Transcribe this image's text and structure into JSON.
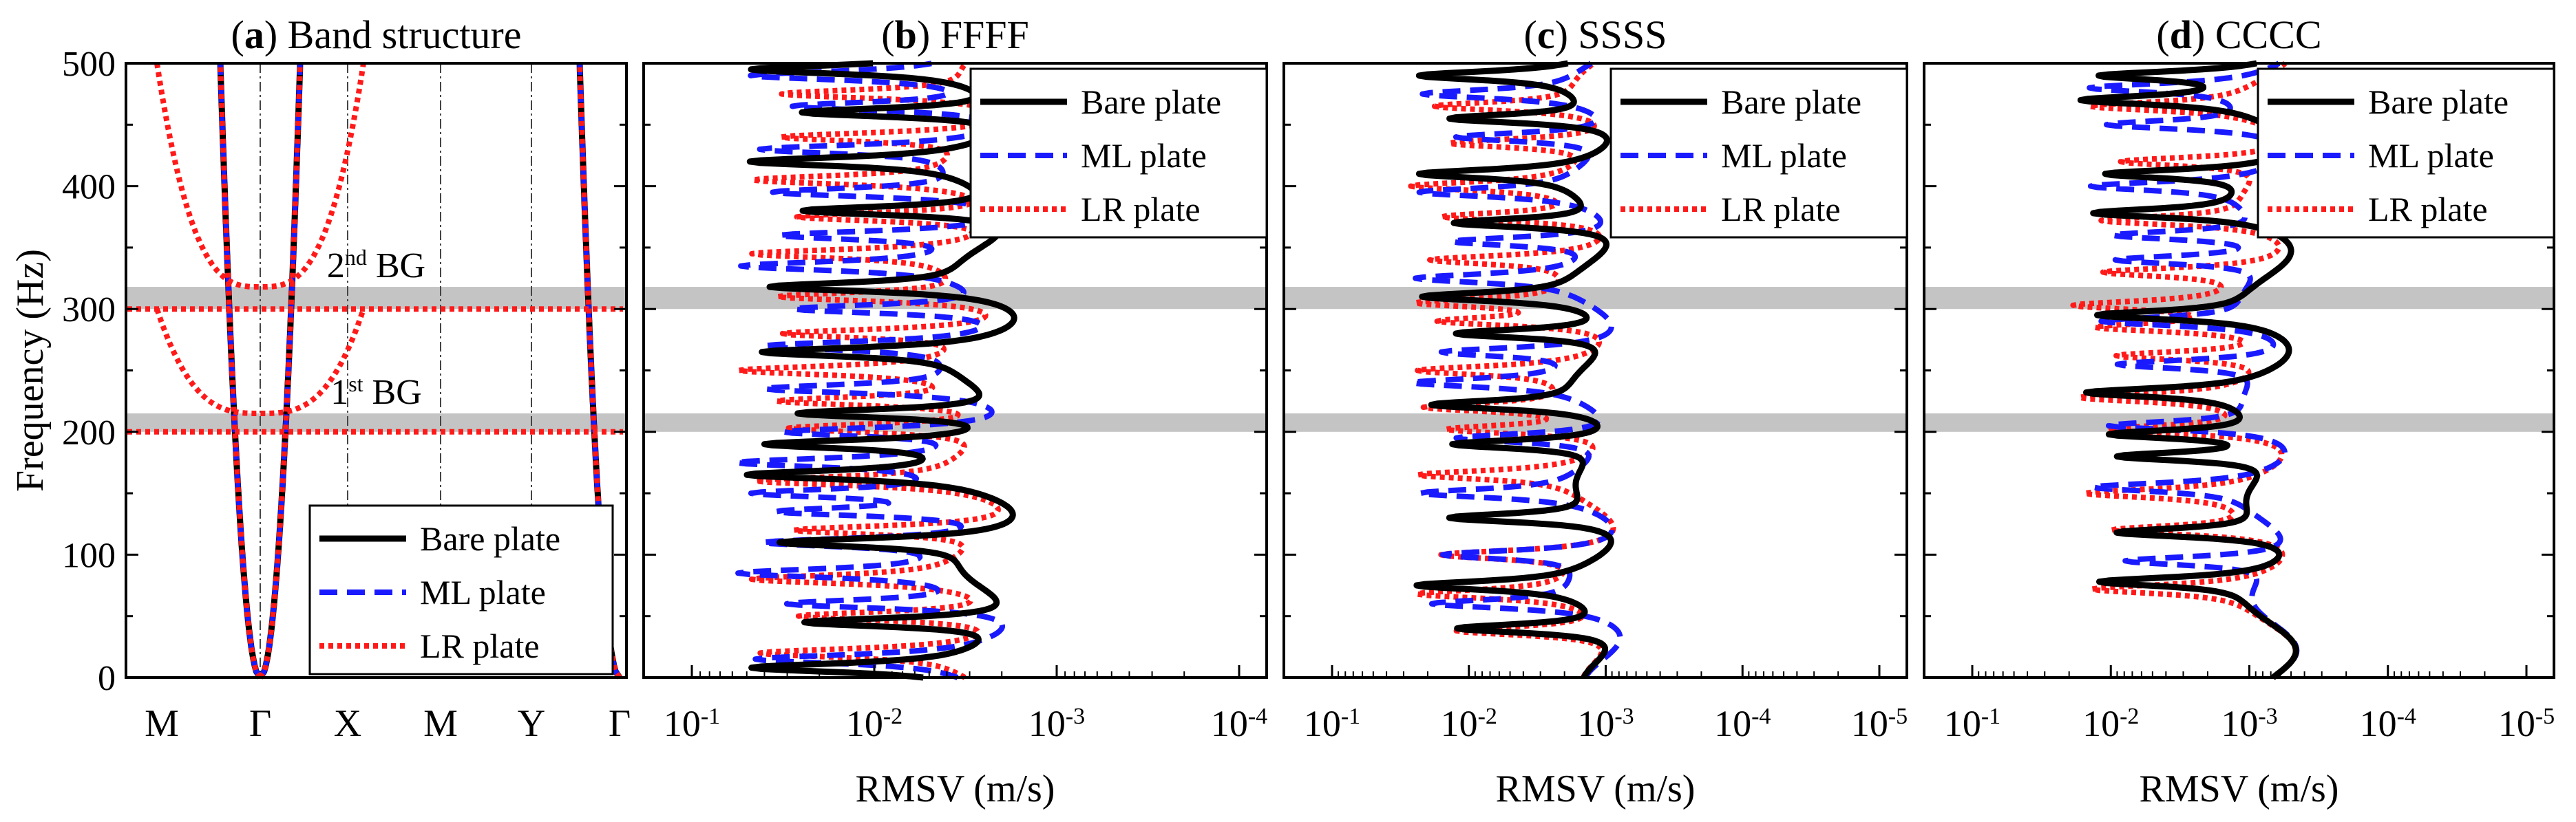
{
  "figure": {
    "y_axis_label": "Frequency (Hz)",
    "x_axis_label": "RMSV (m/s)"
  },
  "legend_entries": [
    {
      "name": "Bare plate",
      "color": "#000000",
      "style": "solid"
    },
    {
      "name": "ML plate",
      "color": "#1a1aff",
      "style": "dashed"
    },
    {
      "name": "LR plate",
      "color": "#ff1a1a",
      "style": "dotted"
    }
  ],
  "chart_data": [
    {
      "type": "line",
      "panel_id": "a",
      "title": "Band structure",
      "xlabel": "",
      "ylabel": "Frequency (Hz)",
      "ylim": [
        0,
        500
      ],
      "y_ticks": [
        "0",
        "100",
        "200",
        "300",
        "400",
        "500"
      ],
      "k_path": [
        "M",
        "Γ",
        "X",
        "M",
        "Y",
        "Γ"
      ],
      "band_gaps": [
        {
          "label": "1",
          "label_sup": "st",
          "label_suffix": " BG",
          "range": [
            200,
            215
          ]
        },
        {
          "label": "2",
          "label_sup": "nd",
          "label_suffix": " BG",
          "range": [
            300,
            318
          ]
        }
      ],
      "series": [
        {
          "name": "Bare plate",
          "curves": [
            {
              "kind": "branch",
              "max": 500
            }
          ]
        },
        {
          "name": "ML plate",
          "curves": [
            {
              "kind": "branch",
              "max": 500
            }
          ]
        },
        {
          "name": "LR plate",
          "curves": [
            {
              "kind": "flat",
              "level": 200
            },
            {
              "kind": "bowl",
              "bottom": 215
            },
            {
              "kind": "flat",
              "level": 300
            },
            {
              "kind": "bowl",
              "bottom": 318
            },
            {
              "kind": "branch",
              "max": 500
            }
          ]
        }
      ],
      "legend": [
        "Bare plate",
        "ML plate",
        "LR plate"
      ]
    },
    {
      "type": "line",
      "panel_id": "b",
      "title": "FFFF",
      "xlabel": "RMSV (m/s)",
      "ylabel": "Frequency (Hz)",
      "ylim": [
        0,
        500
      ],
      "xscale": "log",
      "x_reversed": true,
      "x_ticks": [
        {
          "base": "10",
          "exp": "-1"
        },
        {
          "base": "10",
          "exp": "-2"
        },
        {
          "base": "10",
          "exp": "-3"
        },
        {
          "base": "10",
          "exp": "-4"
        }
      ],
      "band_gaps": [
        [
          200,
          215
        ],
        [
          300,
          318
        ]
      ],
      "series": [
        {
          "name": "Bare plate",
          "resonances_hz": [
            8,
            45,
            110,
            165,
            190,
            215,
            265,
            318,
            380,
            420,
            460,
            495
          ]
        },
        {
          "name": "ML plate",
          "resonances_hz": [
            15,
            60,
            85,
            110,
            135,
            150,
            175,
            200,
            235,
            270,
            300,
            335,
            360,
            395,
            430,
            465,
            490
          ]
        },
        {
          "name": "LR plate",
          "resonances_hz": [
            20,
            50,
            80,
            120,
            160,
            203,
            225,
            250,
            280,
            310,
            345,
            375,
            405,
            440,
            475
          ]
        }
      ],
      "legend": [
        "Bare plate",
        "ML plate",
        "LR plate"
      ]
    },
    {
      "type": "line",
      "panel_id": "c",
      "title": "SSSS",
      "xlabel": "RMSV (m/s)",
      "ylabel": "Frequency (Hz)",
      "ylim": [
        0,
        500
      ],
      "xscale": "log",
      "x_reversed": true,
      "x_ticks": [
        {
          "base": "10",
          "exp": "-1"
        },
        {
          "base": "10",
          "exp": "-2"
        },
        {
          "base": "10",
          "exp": "-3"
        },
        {
          "base": "10",
          "exp": "-4"
        },
        {
          "base": "10",
          "exp": "-5"
        }
      ],
      "band_gaps": [
        [
          200,
          215
        ],
        [
          300,
          318
        ]
      ],
      "series": [
        {
          "name": "Bare plate",
          "resonances_hz": [
            40,
            75,
            130,
            190,
            222,
            280,
            310,
            370,
            410,
            455,
            490
          ]
        },
        {
          "name": "ML plate",
          "resonances_hz": [
            60,
            100,
            150,
            195,
            240,
            265,
            325,
            355,
            395,
            440,
            475
          ]
        },
        {
          "name": "LR plate",
          "resonances_hz": [
            38,
            68,
            100,
            165,
            202,
            220,
            250,
            290,
            305,
            340,
            375,
            400,
            435,
            465
          ]
        }
      ],
      "legend": [
        "Bare plate",
        "ML plate",
        "LR plate"
      ]
    },
    {
      "type": "line",
      "panel_id": "d",
      "title": "CCCC",
      "xlabel": "RMSV (m/s)",
      "ylabel": "Frequency (Hz)",
      "ylim": [
        0,
        500
      ],
      "xscale": "log",
      "x_reversed": true,
      "x_ticks": [
        {
          "base": "10",
          "exp": "-1"
        },
        {
          "base": "10",
          "exp": "-2"
        },
        {
          "base": "10",
          "exp": "-3"
        },
        {
          "base": "10",
          "exp": "-4"
        },
        {
          "base": "10",
          "exp": "-5"
        }
      ],
      "band_gaps": [
        [
          200,
          215
        ],
        [
          300,
          318
        ]
      ],
      "series": [
        {
          "name": "Bare plate",
          "resonances_hz": [
            78,
            118,
            180,
            198,
            232,
            295,
            378,
            410,
            470,
            490
          ]
        },
        {
          "name": "ML plate",
          "resonances_hz": [
            95,
            155,
            205,
            255,
            290,
            340,
            360,
            400,
            450,
            480
          ]
        },
        {
          "name": "LR plate",
          "resonances_hz": [
            72,
            120,
            150,
            202,
            228,
            262,
            285,
            303,
            330,
            372,
            420,
            465
          ]
        }
      ],
      "legend": [
        "Bare plate",
        "ML plate",
        "LR plate"
      ]
    }
  ]
}
